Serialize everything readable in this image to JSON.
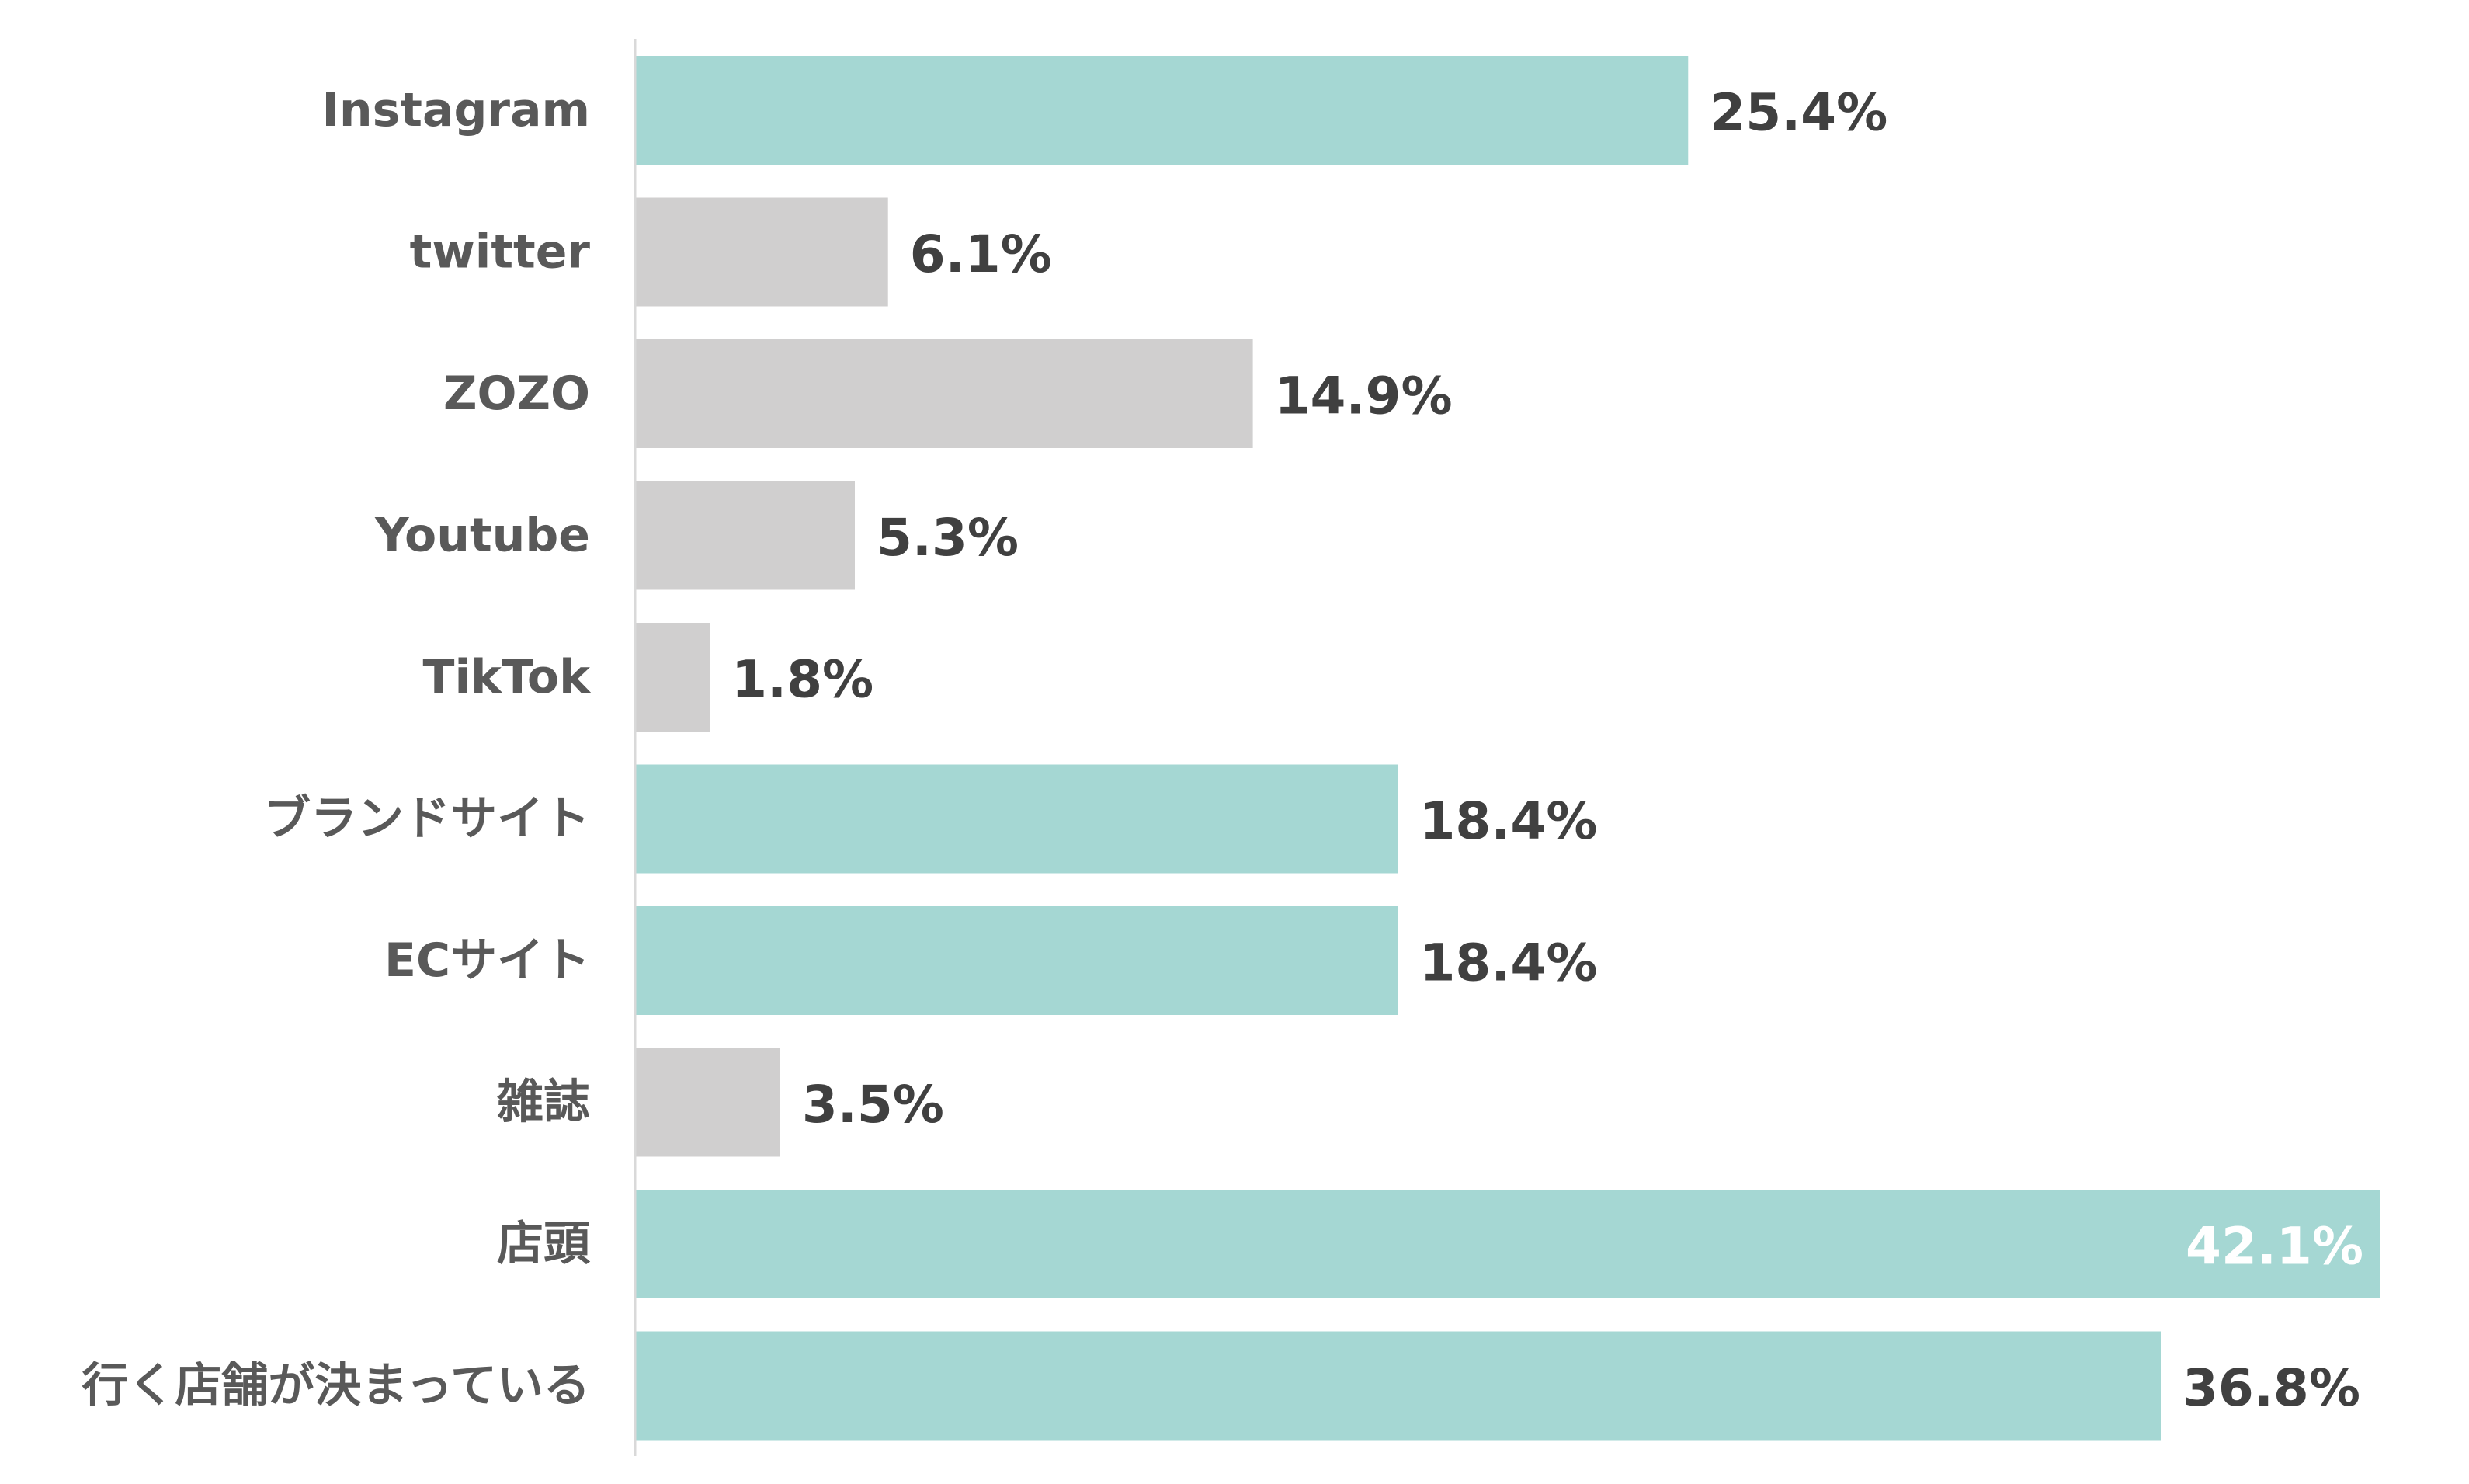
{
  "chart_data": {
    "type": "bar",
    "orientation": "horizontal",
    "title": "",
    "xlabel": "",
    "ylabel": "",
    "xlim": [
      0,
      42.1
    ],
    "grid": false,
    "legend": "none",
    "categories": [
      "Instagram",
      "twitter",
      "ZOZO",
      "Youtube",
      "TikTok",
      "ブランドサイト",
      "ECサイト",
      "雑誌",
      "店頭",
      "行く店舗が決まっている"
    ],
    "values": [
      25.4,
      6.1,
      14.9,
      5.3,
      1.8,
      18.4,
      18.4,
      3.5,
      42.1,
      36.8
    ],
    "data_labels": [
      "25.4%",
      "6.1%",
      "14.9%",
      "5.3%",
      "1.8%",
      "18.4%",
      "18.4%",
      "3.5%",
      "42.1%",
      "36.8%"
    ],
    "highlighted": [
      true,
      false,
      false,
      false,
      false,
      true,
      true,
      false,
      true,
      true
    ],
    "colors": {
      "highlight": "#a5d7d3",
      "normal": "#d0cfcf",
      "axis": "#d9d9d9",
      "category_text": "#595959",
      "value_text": "#404040",
      "value_text_inside": "#ffffff"
    }
  }
}
